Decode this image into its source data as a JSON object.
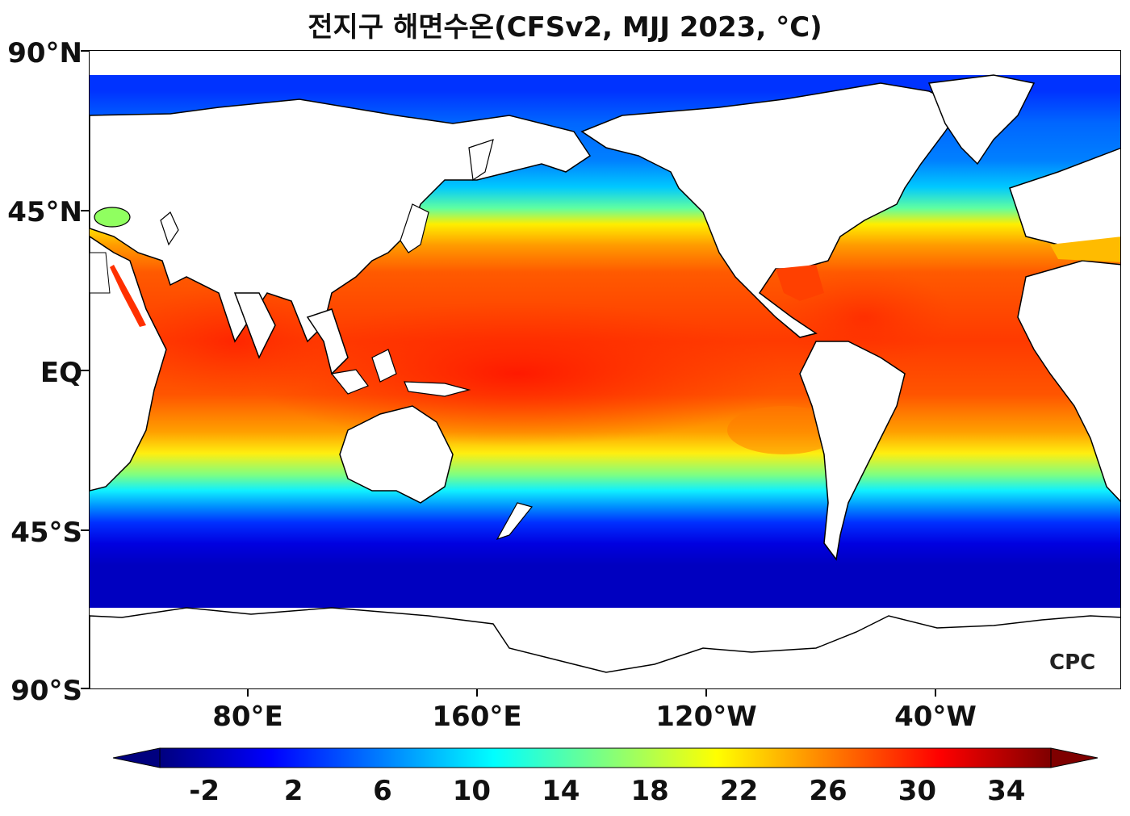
{
  "title": "전지구 해면수온(CFSv2, MJJ 2023, °C)",
  "map": {
    "variable": "sea-surface-temperature",
    "y_ticks": [
      "90°N",
      "45°N",
      "EQ",
      "45°S",
      "90°S"
    ],
    "x_ticks": [
      "80°E",
      "160°E",
      "120°W",
      "40°W"
    ],
    "colormap": "jet",
    "land_color": "#ffffff",
    "coastline_color": "#000000"
  },
  "colorbar": {
    "min": -4,
    "max": 36,
    "extend": "both",
    "tick_labels": [
      "-2",
      "2",
      "6",
      "10",
      "14",
      "18",
      "22",
      "26",
      "30",
      "34"
    ],
    "colors": [
      "#00007f",
      "#0000ff",
      "#007fff",
      "#00ffff",
      "#7fff7f",
      "#ffff00",
      "#ff7f00",
      "#ff0000",
      "#7f0000"
    ]
  },
  "watermark": "CPC"
}
